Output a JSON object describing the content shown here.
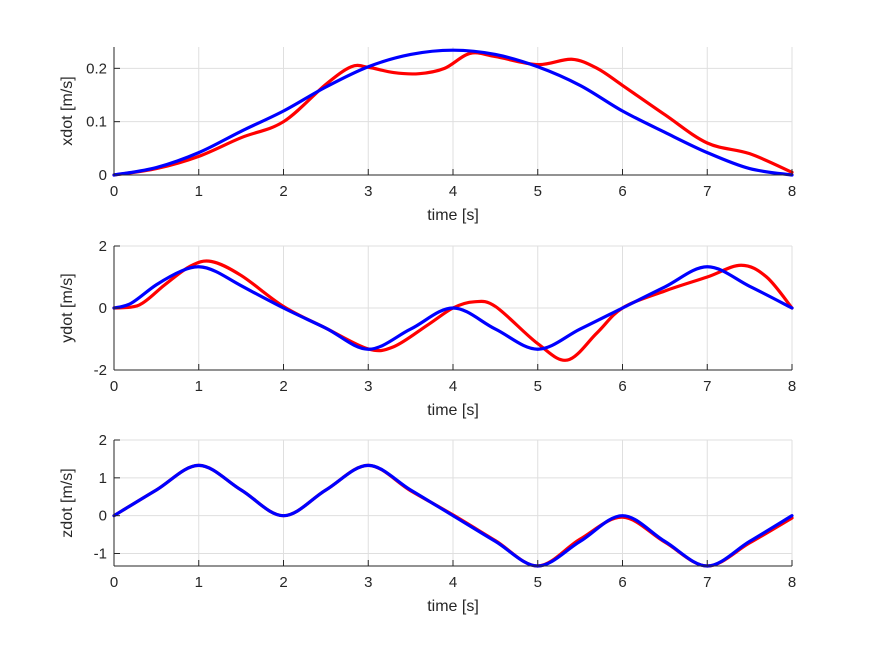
{
  "chart_data": [
    {
      "type": "line",
      "xlabel": "time [s]",
      "ylabel": "xdot [m/s]",
      "xlim": [
        0,
        8
      ],
      "ylim": [
        0,
        0.24
      ],
      "xticks": [
        0,
        1,
        2,
        3,
        4,
        5,
        6,
        7,
        8
      ],
      "yticks": [
        0,
        0.1,
        0.2
      ],
      "ytick_labels": [
        "0",
        "0.1",
        "0.2"
      ],
      "grid": true,
      "series": [
        {
          "color": "#ff0000",
          "x": [
            0,
            0.5,
            1,
            1.5,
            2,
            2.5,
            2.8,
            3,
            3.3,
            3.6,
            3.9,
            4.2,
            4.5,
            5,
            5.4,
            5.7,
            6,
            6.5,
            7,
            7.5,
            8
          ],
          "y": [
            0,
            0.012,
            0.035,
            0.07,
            0.1,
            0.17,
            0.203,
            0.202,
            0.192,
            0.19,
            0.2,
            0.228,
            0.222,
            0.207,
            0.217,
            0.2,
            0.168,
            0.113,
            0.06,
            0.04,
            0.005
          ]
        },
        {
          "color": "#0000ff",
          "x": [
            0,
            0.5,
            1,
            1.5,
            2,
            2.5,
            3,
            3.5,
            4,
            4.5,
            5,
            5.5,
            6,
            6.5,
            7,
            7.5,
            8
          ],
          "y": [
            0,
            0.014,
            0.042,
            0.082,
            0.12,
            0.165,
            0.203,
            0.226,
            0.234,
            0.226,
            0.203,
            0.168,
            0.12,
            0.08,
            0.042,
            0.012,
            0
          ]
        }
      ]
    },
    {
      "type": "line",
      "xlabel": "time [s]",
      "ylabel": "ydot [m/s]",
      "xlim": [
        0,
        8
      ],
      "ylim": [
        -2,
        2
      ],
      "xticks": [
        0,
        1,
        2,
        3,
        4,
        5,
        6,
        7,
        8
      ],
      "yticks": [
        -2,
        0,
        2
      ],
      "ytick_labels": [
        "-2",
        "0",
        "2"
      ],
      "grid": true,
      "series": [
        {
          "color": "#ff0000",
          "x": [
            0,
            0.3,
            0.6,
            0.9,
            1.15,
            1.5,
            2,
            2.5,
            3,
            3.3,
            3.7,
            4,
            4.25,
            4.5,
            5,
            5.35,
            5.7,
            6,
            6.5,
            7,
            7.4,
            7.7,
            8
          ],
          "y": [
            0,
            0.1,
            0.75,
            1.35,
            1.5,
            1.05,
            0.05,
            -0.65,
            -1.32,
            -1.25,
            -0.55,
            0,
            0.2,
            0.05,
            -1.15,
            -1.68,
            -0.8,
            0,
            0.55,
            1,
            1.38,
            1,
            0
          ]
        },
        {
          "color": "#0000ff",
          "x": [
            0,
            0.2,
            0.5,
            0.8,
            1,
            1.2,
            1.5,
            2,
            2.5,
            3,
            3.5,
            4,
            4.5,
            5,
            5.5,
            6,
            6.5,
            7,
            7.5,
            8
          ],
          "y": [
            0,
            0.15,
            0.75,
            1.2,
            1.33,
            1.18,
            0.72,
            0,
            -0.65,
            -1.33,
            -0.68,
            0,
            -0.68,
            -1.33,
            -0.68,
            0,
            0.68,
            1.33,
            0.7,
            0
          ]
        }
      ]
    },
    {
      "type": "line",
      "xlabel": "time [s]",
      "ylabel": "zdot [m/s]",
      "xlim": [
        0,
        8
      ],
      "ylim": [
        -1.33,
        2
      ],
      "xticks": [
        0,
        1,
        2,
        3,
        4,
        5,
        6,
        7,
        8
      ],
      "yticks": [
        -1,
        0,
        1,
        2
      ],
      "ytick_labels": [
        "-1",
        "0",
        "1",
        "2"
      ],
      "grid": true,
      "series": [
        {
          "color": "#ff0000",
          "x": [
            0,
            0.5,
            1,
            1.5,
            2,
            2.5,
            3,
            3.5,
            4,
            4.5,
            5,
            5.5,
            6,
            6.5,
            7,
            7.5,
            8
          ],
          "y": [
            0,
            0.68,
            1.33,
            0.68,
            0,
            0.68,
            1.33,
            0.66,
            0.02,
            -0.66,
            -1.33,
            -0.62,
            -0.04,
            -0.7,
            -1.33,
            -0.72,
            -0.06
          ]
        },
        {
          "color": "#0000ff",
          "x": [
            0,
            0.5,
            1,
            1.5,
            2,
            2.5,
            3,
            3.5,
            4,
            4.5,
            5,
            5.5,
            6,
            6.5,
            7,
            7.5,
            8
          ],
          "y": [
            0,
            0.68,
            1.33,
            0.68,
            0,
            0.68,
            1.33,
            0.68,
            0,
            -0.68,
            -1.33,
            -0.68,
            0,
            -0.68,
            -1.33,
            -0.68,
            0
          ]
        }
      ]
    }
  ]
}
